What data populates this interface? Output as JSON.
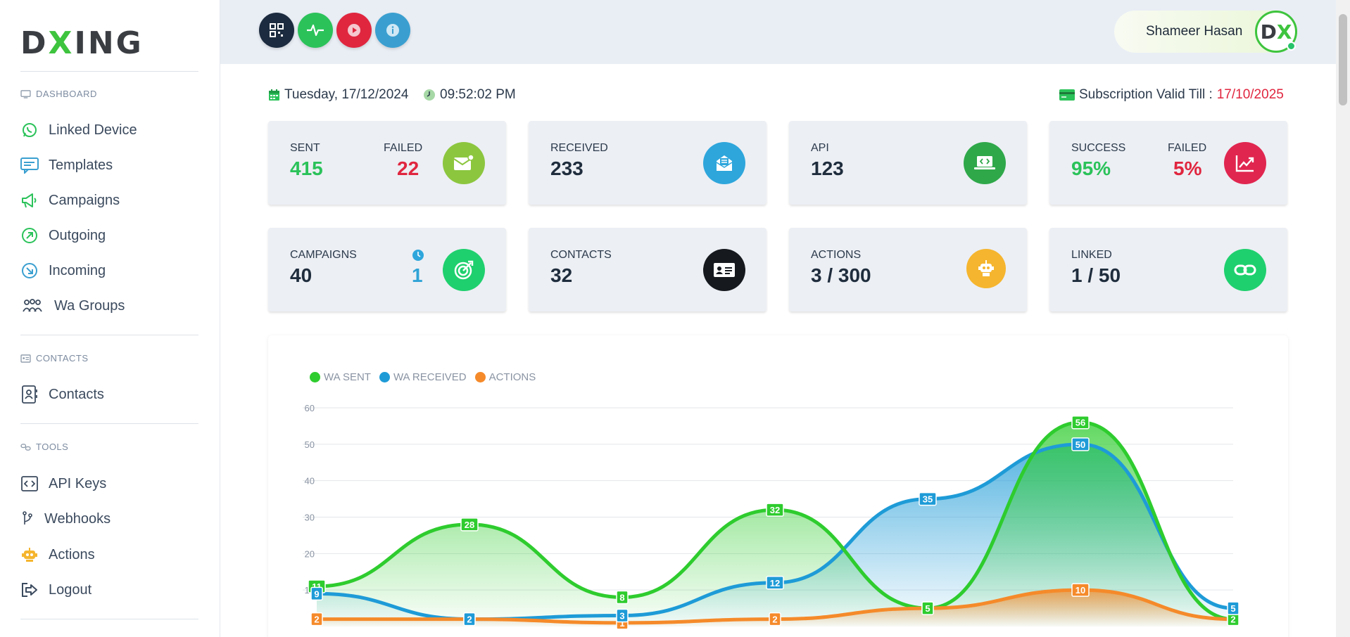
{
  "brand": {
    "logo_a": "D",
    "logo_x": "X",
    "logo_b": "ING"
  },
  "sidebar": {
    "sections": [
      {
        "label": "DASHBOARD",
        "icon": "monitor-icon"
      },
      {
        "label": "CONTACTS",
        "icon": "id-card-icon"
      },
      {
        "label": "TOOLS",
        "icon": "link-icon"
      }
    ],
    "items": [
      {
        "label": "Linked Device",
        "icon": "whatsapp-icon"
      },
      {
        "label": "Templates",
        "icon": "message-icon"
      },
      {
        "label": "Campaigns",
        "icon": "megaphone-icon"
      },
      {
        "label": "Outgoing",
        "icon": "arrow-up-right-circle-icon"
      },
      {
        "label": "Incoming",
        "icon": "arrow-down-right-circle-icon"
      },
      {
        "label": "Wa Groups",
        "icon": "group-icon"
      },
      {
        "label": "Contacts",
        "icon": "contact-book-icon"
      },
      {
        "label": "API Keys",
        "icon": "code-icon"
      },
      {
        "label": "Webhooks",
        "icon": "branch-icon"
      },
      {
        "label": "Actions",
        "icon": "robot-icon"
      },
      {
        "label": "Logout",
        "icon": "logout-icon"
      }
    ]
  },
  "header": {
    "buttons": [
      {
        "name": "qr-code-button",
        "icon": "qr-icon",
        "color": "#1c2b3f"
      },
      {
        "name": "activity-button",
        "icon": "pulse-icon",
        "color": "#2bc25a"
      },
      {
        "name": "play-button",
        "icon": "play-icon",
        "color": "#e0263f"
      },
      {
        "name": "info-button",
        "icon": "info-icon",
        "color": "#3a9fd0"
      }
    ],
    "user_name": "Shameer Hasan",
    "avatar_a": "D",
    "avatar_x": "X"
  },
  "info": {
    "date": "Tuesday, 17/12/2024",
    "time": "09:52:02 PM",
    "subscription_label": "Subscription Valid Till :",
    "subscription_date": "17/10/2025"
  },
  "cards": {
    "sent_label": "SENT",
    "sent_value": "415",
    "failed_label": "FAILED",
    "failed_value": "22",
    "received_label": "RECEIVED",
    "received_value": "233",
    "api_label": "API",
    "api_value": "123",
    "success_label": "SUCCESS",
    "success_value": "95%",
    "failed2_label": "FAILED",
    "failed2_value": "5%",
    "campaigns_label": "CAMPAIGNS",
    "campaigns_value": "40",
    "campaigns_scheduled": "1",
    "contacts_label": "CONTACTS",
    "contacts_value": "32",
    "actions_label": "ACTIONS",
    "actions_value": "3 / 300",
    "linked_label": "LINKED",
    "linked_value": "1 / 50"
  },
  "colors": {
    "sent": "#2ecc2e",
    "received": "#1e9bd7",
    "actions": "#f58a2a",
    "failed": "#e0263f",
    "accent": "#2bc25a"
  },
  "chart_data": {
    "type": "area",
    "ylim": [
      0,
      60
    ],
    "yticks": [
      "60",
      "50",
      "40",
      "30",
      "20",
      "10"
    ],
    "series": [
      {
        "name": "WA SENT",
        "values": [
          11,
          28,
          8,
          32,
          5,
          56,
          2
        ]
      },
      {
        "name": "WA RECEIVED",
        "values": [
          9,
          2,
          3,
          12,
          35,
          50,
          5
        ]
      },
      {
        "name": "ACTIONS",
        "values": [
          2,
          2,
          1,
          2,
          5,
          10,
          2
        ]
      }
    ],
    "legend": "top-left"
  }
}
